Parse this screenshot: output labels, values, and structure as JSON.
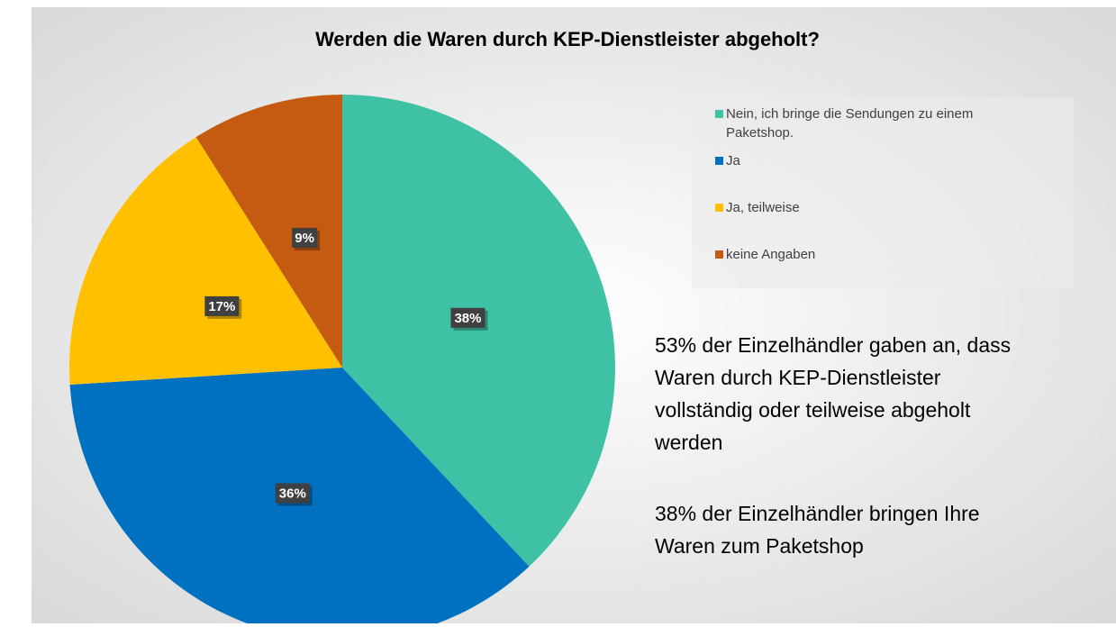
{
  "chart_data": {
    "type": "pie",
    "title": "Werden die Waren durch KEP-Dienstleister abgeholt?",
    "categories": [
      "Nein, ich bringe die Sendungen zu einem Paketshop.",
      "Ja",
      "Ja, teilweise",
      "keine Angaben"
    ],
    "values": [
      38,
      36,
      17,
      9
    ],
    "value_labels": [
      "38%",
      "36%",
      "17%",
      "9%"
    ],
    "colors": [
      "#3fc1a5",
      "#0070c0",
      "#ffc000",
      "#c55a11"
    ],
    "legend": "right",
    "annotations": [
      [
        "53% der Einzelhändler gaben an, dass",
        "Waren durch KEP-Dienstleister",
        "vollständig oder teilweise abgeholt",
        "werden"
      ],
      [
        "38% der Einzelhändler bringen Ihre",
        "Waren zum Paketshop"
      ]
    ]
  }
}
